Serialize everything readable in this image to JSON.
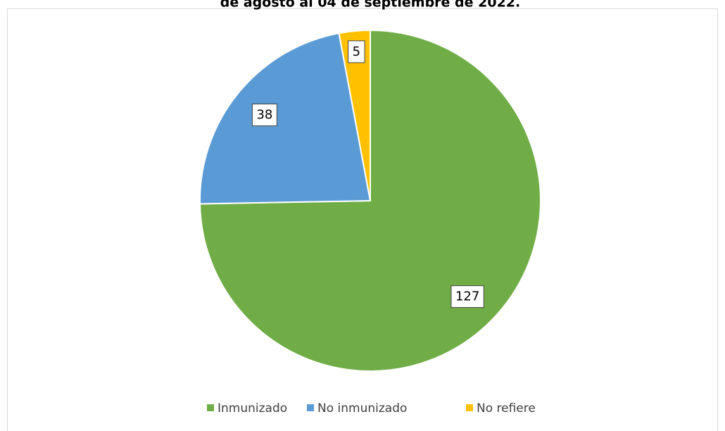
{
  "chart_data": {
    "type": "pie",
    "title": "de agosto al 04 de septiembre de 2022.",
    "categories": [
      "Inmunizado",
      "No inmunizado",
      "No refiere"
    ],
    "values": [
      127,
      38,
      5
    ],
    "colors": [
      "#70ad47",
      "#5b9bd5",
      "#ffc000"
    ]
  }
}
